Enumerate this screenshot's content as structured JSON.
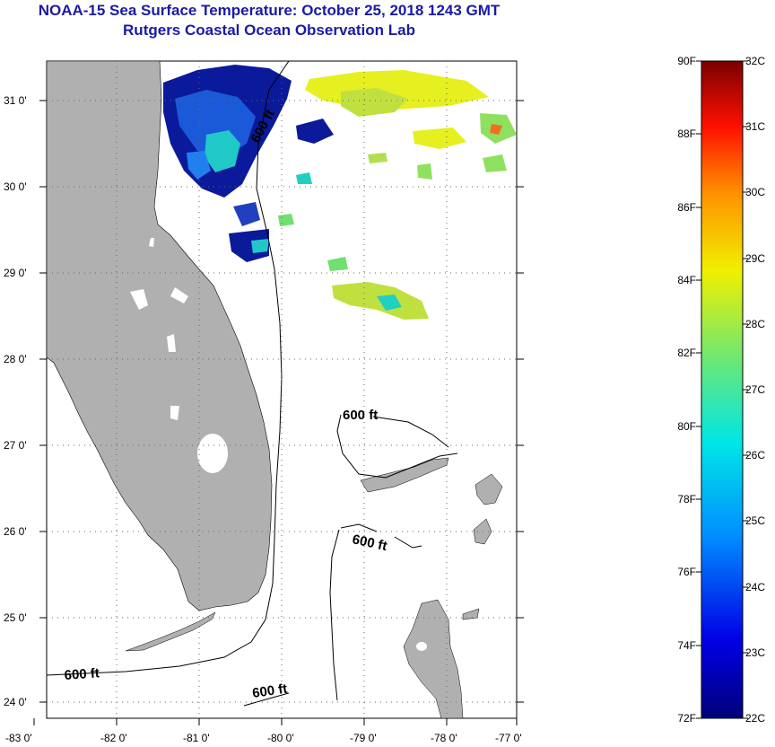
{
  "title": {
    "line1": "NOAA-15 Sea Surface Temperature:  October 25, 2018 1243 GMT",
    "line2": "Rutgers Coastal Ocean Observation Lab"
  },
  "axes": {
    "lon_labels": [
      "-83 0'",
      "-82 0'",
      "-81 0'",
      "-80 0'",
      "-79 0'",
      "-78 0'",
      "-77 0'"
    ],
    "lat_labels": [
      "31 0'",
      "30 0'",
      "29 0'",
      "28 0'",
      "27 0'",
      "26 0'",
      "25 0'",
      "24 0'"
    ]
  },
  "contours": [
    {
      "label": "600 ft"
    },
    {
      "label": "600 ft"
    },
    {
      "label": "600 ft"
    },
    {
      "label": "600 ft"
    },
    {
      "label": "600 ft"
    }
  ],
  "colorbar": {
    "fahrenheit_labels": [
      "90F",
      "88F",
      "86F",
      "84F",
      "82F",
      "80F",
      "78F",
      "76F",
      "74F",
      "72F"
    ],
    "celsius_labels": [
      "32C",
      "31C",
      "30C",
      "29C",
      "28C",
      "27C",
      "26C",
      "25C",
      "24C",
      "23C",
      "22C"
    ],
    "min_c": 22,
    "max_c": 32
  },
  "colors": {
    "title": "#1a1aa6",
    "land": "#b0b0b0",
    "cold": "#0a1a9a",
    "mid": "#20d0c0",
    "warm": "#e6f020"
  }
}
